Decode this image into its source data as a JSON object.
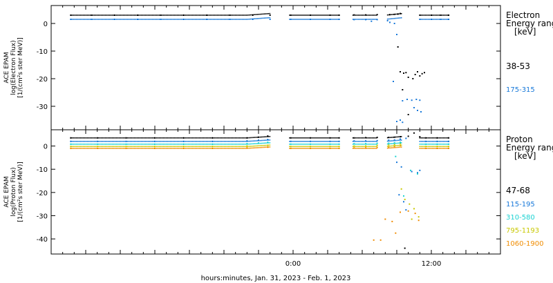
{
  "chart_data": [
    {
      "type": "scatter",
      "title": "",
      "ylabel_lines": [
        "ACE EPAM",
        "log(Electron Flux)",
        "[1/(cm²s ster MeV)]"
      ],
      "legend_lines": [
        "Electron",
        "Energy range",
        "[keV]"
      ],
      "ylim": [
        -38.5,
        6.5
      ],
      "yticks": [
        0,
        -10,
        -20,
        -30
      ],
      "series": [
        {
          "name": "38-53",
          "color": "#000000",
          "points": [
            [
              -19.3,
              3.0
            ],
            [
              -17.5,
              3.0
            ],
            [
              -15.5,
              3.0
            ],
            [
              -13.5,
              3.0
            ],
            [
              -11.5,
              3.0
            ],
            [
              -9.5,
              3.0
            ],
            [
              -7.5,
              3.0
            ],
            [
              -5.5,
              3.0
            ],
            [
              -3.5,
              3.0
            ],
            [
              -2.0,
              3.0
            ],
            [
              -0.2,
              3.0
            ],
            [
              1.5,
              3.0
            ],
            [
              3.2,
              3.0
            ],
            [
              4.0,
              3.0
            ],
            [
              5.3,
              3.1
            ],
            [
              6.3,
              3.1
            ],
            [
              7.3,
              3.2
            ],
            [
              8.4,
              3.2
            ],
            [
              8.8,
              3.3
            ],
            [
              9.1,
              3.4
            ],
            [
              9.3,
              3.6
            ],
            [
              9.1,
              -8.5
            ],
            [
              9.3,
              -17.5
            ],
            [
              9.6,
              -18.0
            ],
            [
              9.8,
              -17.8
            ],
            [
              10.0,
              -19.5
            ],
            [
              10.4,
              -20.0
            ],
            [
              10.6,
              -18.5
            ],
            [
              10.8,
              -17.5
            ],
            [
              11.0,
              -19.0
            ],
            [
              11.2,
              -18.2
            ],
            [
              11.4,
              -17.8
            ],
            [
              9.5,
              -24.0
            ],
            [
              10.0,
              -33.0
            ],
            [
              11.0,
              3.0
            ],
            [
              12.0,
              3.0
            ],
            [
              12.8,
              3.0
            ],
            [
              13.5,
              3.0
            ]
          ]
        },
        {
          "name": "175-315",
          "color": "#1577d9",
          "points": [
            [
              -19.3,
              1.5
            ],
            [
              -17.5,
              1.5
            ],
            [
              -15.5,
              1.5
            ],
            [
              -13.5,
              1.5
            ],
            [
              -11.5,
              1.5
            ],
            [
              -9.5,
              1.5
            ],
            [
              -7.5,
              1.5
            ],
            [
              -5.5,
              1.5
            ],
            [
              -3.5,
              1.5
            ],
            [
              -2.0,
              1.5
            ],
            [
              -0.2,
              1.5
            ],
            [
              1.5,
              1.5
            ],
            [
              3.2,
              1.5
            ],
            [
              4.0,
              1.5
            ],
            [
              5.3,
              1.4
            ],
            [
              6.3,
              1.4
            ],
            [
              6.8,
              0.8
            ],
            [
              7.3,
              1.4
            ],
            [
              8.2,
              1.0
            ],
            [
              8.4,
              0.4
            ],
            [
              8.8,
              0.0
            ],
            [
              9.0,
              -4.0
            ],
            [
              8.7,
              -21.0
            ],
            [
              9.0,
              -35.5
            ],
            [
              9.3,
              -35.0
            ],
            [
              9.5,
              -35.8
            ],
            [
              9.5,
              -28.0
            ],
            [
              9.9,
              -27.5
            ],
            [
              10.3,
              -27.8
            ],
            [
              10.7,
              -27.5
            ],
            [
              11.0,
              -27.8
            ],
            [
              10.5,
              -30.5
            ],
            [
              10.8,
              -31.5
            ],
            [
              11.1,
              -32.0
            ],
            [
              11.0,
              1.5
            ],
            [
              12.0,
              1.5
            ],
            [
              12.8,
              1.5
            ],
            [
              13.5,
              1.5
            ]
          ]
        }
      ]
    },
    {
      "type": "scatter",
      "title": "",
      "ylabel_lines": [
        "ACE EPAM",
        "log(Proton Flux)",
        "[1/(cm²s ster MeV)]"
      ],
      "legend_lines": [
        "Proton",
        "Energy range",
        "[keV]"
      ],
      "ylim": [
        -46.5,
        7
      ],
      "yticks": [
        0,
        -10,
        -20,
        -30,
        -40
      ],
      "xlabel": "hours:minutes, Jan. 31, 2023 - Feb.  1, 2023",
      "xlim": [
        -21,
        18
      ],
      "xticks": [
        {
          "value": 0,
          "label": "0:00"
        },
        {
          "value": 12,
          "label": "12:00"
        }
      ],
      "series": [
        {
          "name": "47-68",
          "color": "#000000",
          "points": [
            [
              -19.3,
              3.5
            ],
            [
              -17.0,
              3.5
            ],
            [
              -14.5,
              3.5
            ],
            [
              -12.0,
              3.5
            ],
            [
              -9.5,
              3.5
            ],
            [
              -7.0,
              3.5
            ],
            [
              -4.0,
              3.5
            ],
            [
              -3.0,
              3.8
            ],
            [
              -2.2,
              4.3
            ],
            [
              -0.2,
              3.5
            ],
            [
              1.5,
              3.5
            ],
            [
              3.2,
              3.5
            ],
            [
              4.0,
              3.5
            ],
            [
              5.3,
              3.5
            ],
            [
              6.3,
              3.6
            ],
            [
              7.3,
              3.7
            ],
            [
              8.3,
              3.7
            ],
            [
              8.8,
              3.8
            ],
            [
              9.3,
              4.0
            ],
            [
              10.0,
              4.2
            ],
            [
              10.5,
              5.6
            ],
            [
              11.0,
              4.0
            ],
            [
              11.5,
              3.5
            ],
            [
              12.5,
              3.5
            ],
            [
              13.5,
              3.5
            ],
            [
              9.7,
              -44.0
            ]
          ]
        },
        {
          "name": "115-195",
          "color": "#1577d9",
          "points": [
            [
              -19.3,
              2.0
            ],
            [
              -17.0,
              2.0
            ],
            [
              -14.5,
              2.0
            ],
            [
              -12.0,
              2.0
            ],
            [
              -9.5,
              2.0
            ],
            [
              -7.0,
              2.0
            ],
            [
              -4.0,
              2.2
            ],
            [
              -3.0,
              2.5
            ],
            [
              -2.2,
              2.8
            ],
            [
              -0.2,
              2.0
            ],
            [
              1.5,
              2.0
            ],
            [
              3.2,
              2.0
            ],
            [
              4.0,
              2.0
            ],
            [
              5.3,
              2.2
            ],
            [
              6.3,
              2.2
            ],
            [
              7.3,
              2.3
            ],
            [
              8.3,
              2.5
            ],
            [
              8.8,
              2.6
            ],
            [
              9.3,
              3.0
            ],
            [
              9.8,
              3.3
            ],
            [
              9.0,
              -7.0
            ],
            [
              9.4,
              -9.0
            ],
            [
              9.2,
              -21.0
            ],
            [
              9.6,
              -24.0
            ],
            [
              9.8,
              -27.5
            ],
            [
              10.3,
              -11.0
            ],
            [
              10.8,
              -11.5
            ],
            [
              11.0,
              -10.5
            ],
            [
              11.5,
              2.0
            ],
            [
              12.5,
              2.0
            ],
            [
              13.5,
              2.0
            ]
          ]
        },
        {
          "name": "310-580",
          "color": "#19d2d2",
          "points": [
            [
              -19.3,
              0.8
            ],
            [
              -17.0,
              0.8
            ],
            [
              -14.5,
              0.8
            ],
            [
              -12.0,
              0.8
            ],
            [
              -9.5,
              0.8
            ],
            [
              -7.0,
              0.8
            ],
            [
              -4.0,
              1.0
            ],
            [
              -3.0,
              1.3
            ],
            [
              -2.2,
              1.6
            ],
            [
              -0.2,
              0.8
            ],
            [
              1.5,
              0.8
            ],
            [
              3.2,
              0.8
            ],
            [
              4.0,
              0.8
            ],
            [
              5.3,
              1.0
            ],
            [
              6.3,
              1.0
            ],
            [
              7.3,
              1.2
            ],
            [
              8.3,
              1.2
            ],
            [
              8.8,
              1.4
            ],
            [
              9.3,
              1.6
            ],
            [
              8.9,
              -4.5
            ],
            [
              9.6,
              -21.5
            ],
            [
              10.2,
              -10.5
            ],
            [
              10.8,
              -12.0
            ],
            [
              11.5,
              0.8
            ],
            [
              12.5,
              0.8
            ],
            [
              13.5,
              0.8
            ]
          ]
        },
        {
          "name": "795-1193",
          "color": "#c8c800",
          "points": [
            [
              -19.3,
              -0.2
            ],
            [
              -17.0,
              -0.2
            ],
            [
              -14.5,
              -0.2
            ],
            [
              -12.0,
              -0.2
            ],
            [
              -9.5,
              -0.2
            ],
            [
              -7.0,
              -0.2
            ],
            [
              -4.0,
              0.0
            ],
            [
              -2.2,
              0.3
            ],
            [
              -0.2,
              -0.2
            ],
            [
              1.5,
              -0.2
            ],
            [
              3.2,
              -0.2
            ],
            [
              4.0,
              -0.2
            ],
            [
              5.3,
              0.0
            ],
            [
              6.3,
              0.0
            ],
            [
              7.3,
              0.3
            ],
            [
              8.3,
              0.5
            ],
            [
              8.8,
              0.6
            ],
            [
              9.3,
              1.0
            ],
            [
              9.4,
              -18.5
            ],
            [
              9.7,
              -23.0
            ],
            [
              10.1,
              -25.0
            ],
            [
              10.5,
              -27.0
            ],
            [
              10.3,
              -31.5
            ],
            [
              10.9,
              -30.5
            ],
            [
              11.5,
              -0.2
            ],
            [
              12.5,
              -0.2
            ],
            [
              13.5,
              -0.2
            ]
          ]
        },
        {
          "name": "1060-1900",
          "color": "#f08c00",
          "points": [
            [
              -19.3,
              -1.0
            ],
            [
              -17.0,
              -1.0
            ],
            [
              -14.5,
              -1.0
            ],
            [
              -12.0,
              -1.0
            ],
            [
              -9.5,
              -1.0
            ],
            [
              -7.0,
              -1.0
            ],
            [
              -4.0,
              -0.8
            ],
            [
              -2.2,
              -0.5
            ],
            [
              -0.2,
              -1.0
            ],
            [
              1.5,
              -1.0
            ],
            [
              3.2,
              -1.0
            ],
            [
              4.0,
              -1.0
            ],
            [
              5.3,
              -0.8
            ],
            [
              6.3,
              -0.8
            ],
            [
              7.3,
              -0.6
            ],
            [
              8.3,
              -0.5
            ],
            [
              8.8,
              -0.2
            ],
            [
              9.3,
              0.2
            ],
            [
              7.0,
              -40.5
            ],
            [
              7.6,
              -40.5
            ],
            [
              8.0,
              -31.5
            ],
            [
              8.6,
              -32.5
            ],
            [
              8.9,
              -37.5
            ],
            [
              9.3,
              -28.5
            ],
            [
              10.0,
              -28.0
            ],
            [
              10.6,
              -29.0
            ],
            [
              10.9,
              -32.0
            ],
            [
              11.5,
              -1.0
            ],
            [
              12.5,
              -1.0
            ],
            [
              13.5,
              -1.0
            ]
          ]
        }
      ]
    }
  ]
}
